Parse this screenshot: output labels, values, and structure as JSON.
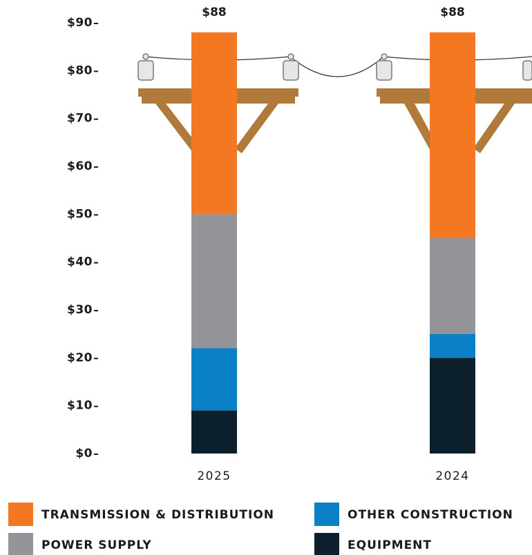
{
  "chart_data": {
    "type": "stacked-bar",
    "categories": [
      "2025",
      "2024"
    ],
    "series": [
      {
        "name": "EQUIPMENT",
        "color": "#0b1f2c",
        "values": [
          9,
          20
        ]
      },
      {
        "name": "OTHER CONSTRUCTION",
        "color": "#0a80c6",
        "values": [
          13,
          5
        ]
      },
      {
        "name": "POWER SUPPLY",
        "color": "#939598",
        "values": [
          28,
          20
        ]
      },
      {
        "name": "TRANSMISSION & DISTRIBUTION",
        "color": "#f47721",
        "values": [
          38,
          43
        ]
      }
    ],
    "totals": [
      88,
      88
    ],
    "total_labels": [
      "$88",
      "$88"
    ],
    "ylim": [
      0,
      90
    ],
    "yticks": [
      {
        "value": 0,
        "label": "$0"
      },
      {
        "value": 10,
        "label": "$10"
      },
      {
        "value": 20,
        "label": "$20"
      },
      {
        "value": 30,
        "label": "$30"
      },
      {
        "value": 40,
        "label": "$40"
      },
      {
        "value": 50,
        "label": "$50"
      },
      {
        "value": 60,
        "label": "$60"
      },
      {
        "value": 70,
        "label": "$70"
      },
      {
        "value": 80,
        "label": "$80"
      },
      {
        "value": 90,
        "label": "$90"
      }
    ]
  }
}
